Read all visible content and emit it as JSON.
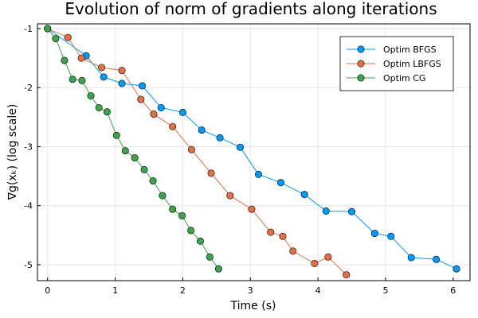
{
  "chart_data": {
    "type": "line",
    "title": "Evolution of norm of gradients along iterations",
    "xlabel": "Time (s)",
    "ylabel": "∇g(xₖ) (log scale)",
    "xlim": [
      -0.15,
      6.25
    ],
    "ylim": [
      -5.27,
      -0.92
    ],
    "xticks": [
      0,
      1,
      2,
      3,
      4,
      5,
      6
    ],
    "yticks": [
      -1,
      -2,
      -3,
      -4,
      -5
    ],
    "grid": true,
    "legend_position": "top-right",
    "series": [
      {
        "name": "Optim BFGS",
        "color": "#009af9",
        "x": [
          0,
          0.57,
          0.83,
          1.1,
          1.4,
          1.68,
          2.0,
          2.28,
          2.55,
          2.85,
          3.12,
          3.45,
          3.8,
          4.12,
          4.5,
          4.84,
          5.08,
          5.38,
          5.75,
          6.05
        ],
        "y": [
          -1,
          -1.46,
          -1.82,
          -1.93,
          -1.97,
          -2.34,
          -2.42,
          -2.72,
          -2.85,
          -3.01,
          -3.47,
          -3.61,
          -3.81,
          -4.09,
          -4.1,
          -4.47,
          -4.52,
          -4.88,
          -4.91,
          -5.07
        ]
      },
      {
        "name": "Optim LBFGS",
        "color": "#e26f46",
        "x": [
          0,
          0.3,
          0.5,
          0.8,
          1.1,
          1.38,
          1.57,
          1.85,
          2.13,
          2.42,
          2.7,
          3.02,
          3.3,
          3.48,
          3.63,
          3.95,
          4.15,
          4.42
        ],
        "y": [
          -1,
          -1.15,
          -1.5,
          -1.66,
          -1.71,
          -2.2,
          -2.45,
          -2.66,
          -3.05,
          -3.45,
          -3.83,
          -4.06,
          -4.45,
          -4.52,
          -4.77,
          -4.98,
          -4.87,
          -5.17
        ]
      },
      {
        "name": "Optim CG",
        "color": "#3da44d",
        "x": [
          0,
          0.12,
          0.25,
          0.37,
          0.51,
          0.64,
          0.76,
          0.88,
          1.02,
          1.15,
          1.29,
          1.43,
          1.56,
          1.7,
          1.85,
          1.99,
          2.12,
          2.26,
          2.4,
          2.53
        ],
        "y": [
          -1,
          -1.17,
          -1.54,
          -1.86,
          -1.88,
          -2.14,
          -2.34,
          -2.41,
          -2.81,
          -3.07,
          -3.19,
          -3.39,
          -3.58,
          -3.83,
          -4.06,
          -4.17,
          -4.42,
          -4.6,
          -4.87,
          -5.07
        ]
      }
    ]
  }
}
